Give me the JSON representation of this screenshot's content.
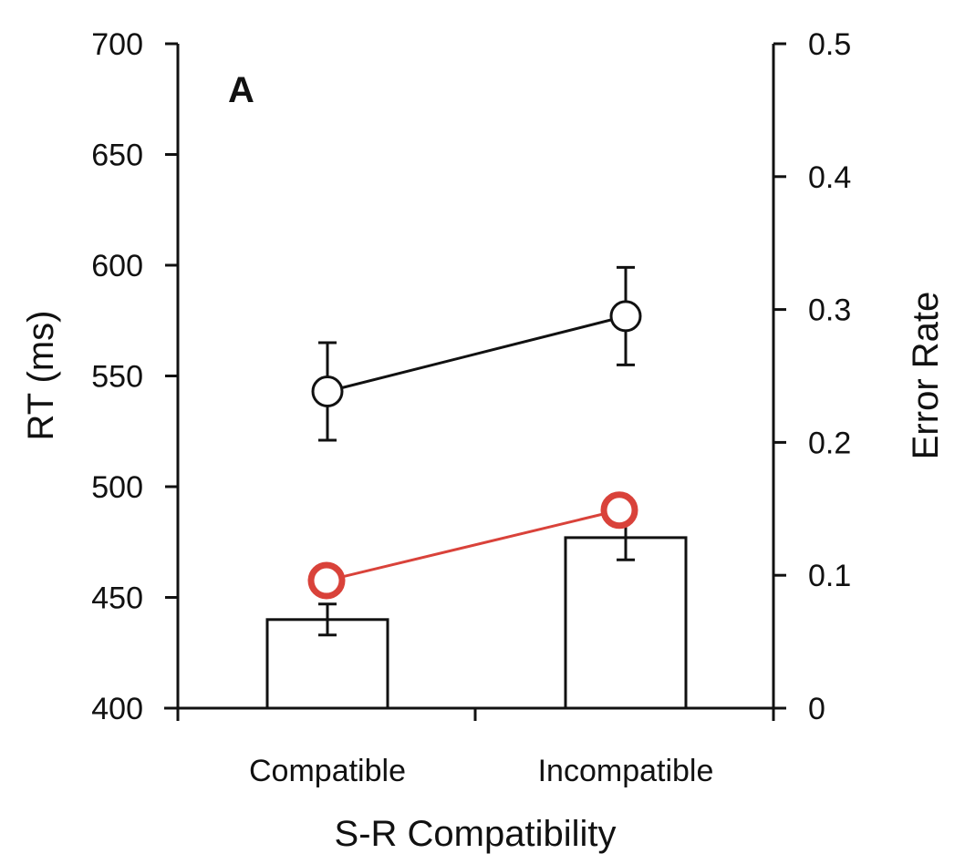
{
  "chart_data": {
    "type": "bar",
    "panel_label": "A",
    "categories": [
      "Compatible",
      "Incompatible"
    ],
    "xlabel": "S-R Compatibility",
    "ylabel_left": "RT (ms)",
    "ylabel_right": "Error Rate",
    "ylim_left": [
      400,
      700
    ],
    "ylim_right": [
      0,
      0.5
    ],
    "yticks_left": [
      "400",
      "450",
      "500",
      "550",
      "600",
      "650",
      "700"
    ],
    "yticks_right": [
      "0",
      "0.1",
      "0.2",
      "0.3",
      "0.4",
      "0.5"
    ],
    "grid": false,
    "legend": "none",
    "series": [
      {
        "kind": "bar",
        "axis": "left",
        "values": [
          440,
          477
        ],
        "errors": [
          7,
          10
        ]
      },
      {
        "kind": "line-open-circle",
        "axis": "left",
        "values": [
          543,
          577
        ],
        "errors": [
          22,
          22
        ],
        "color": "#111111"
      },
      {
        "kind": "line-open-circle",
        "axis": "right",
        "values": [
          0.096,
          0.149
        ],
        "color": "#d9423a"
      }
    ]
  }
}
